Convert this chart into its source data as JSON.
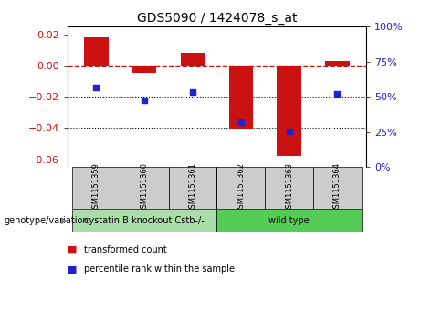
{
  "title": "GDS5090 / 1424078_s_at",
  "samples": [
    "GSM1151359",
    "GSM1151360",
    "GSM1151361",
    "GSM1151362",
    "GSM1151363",
    "GSM1151364"
  ],
  "bar_values": [
    0.018,
    -0.005,
    0.008,
    -0.041,
    -0.058,
    0.003
  ],
  "dot_values": [
    -0.014,
    -0.022,
    -0.017,
    -0.036,
    -0.042,
    -0.018
  ],
  "bar_color": "#cc1111",
  "dot_color": "#2222cc",
  "left_ylim": [
    -0.065,
    0.025
  ],
  "left_yticks": [
    -0.06,
    -0.04,
    -0.02,
    0.0,
    0.02
  ],
  "groups": [
    {
      "label": "cystatin B knockout Cstb-/-",
      "indices": [
        0,
        1,
        2
      ],
      "color": "#aaddaa"
    },
    {
      "label": "wild type",
      "indices": [
        3,
        4,
        5
      ],
      "color": "#55cc55"
    }
  ],
  "genotype_label": "genotype/variation",
  "legend_bar_label": "transformed count",
  "legend_dot_label": "percentile rank within the sample",
  "hline_y": 0.0,
  "dotted_hlines": [
    -0.02,
    -0.04
  ],
  "sample_box_color": "#cccccc",
  "background_color": "#ffffff"
}
